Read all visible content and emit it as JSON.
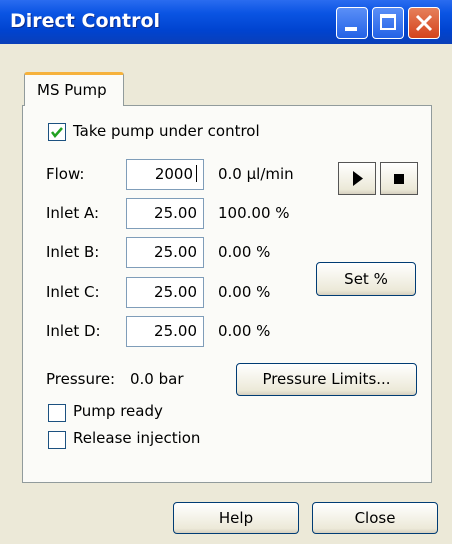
{
  "window": {
    "title": "Direct Control"
  },
  "tab": "MS Pump",
  "control_checkbox": "Take pump under control",
  "flow": {
    "label": "Flow:",
    "input": "2000",
    "reading": "0.0 µl/min"
  },
  "inlets": [
    {
      "label": "Inlet A:",
      "input": "25.00",
      "reading": "100.00 %"
    },
    {
      "label": "Inlet B:",
      "input": "25.00",
      "reading": "0.00 %"
    },
    {
      "label": "Inlet C:",
      "input": "25.00",
      "reading": "0.00 %"
    },
    {
      "label": "Inlet D:",
      "input": "25.00",
      "reading": "0.00 %"
    }
  ],
  "set_button": "Set %",
  "pressure": {
    "label": "Pressure:",
    "reading": "0.0 bar",
    "button": "Pressure Limits..."
  },
  "checkboxes": [
    "Pump ready",
    "Release injection"
  ],
  "buttons": [
    "Help",
    "Close"
  ]
}
